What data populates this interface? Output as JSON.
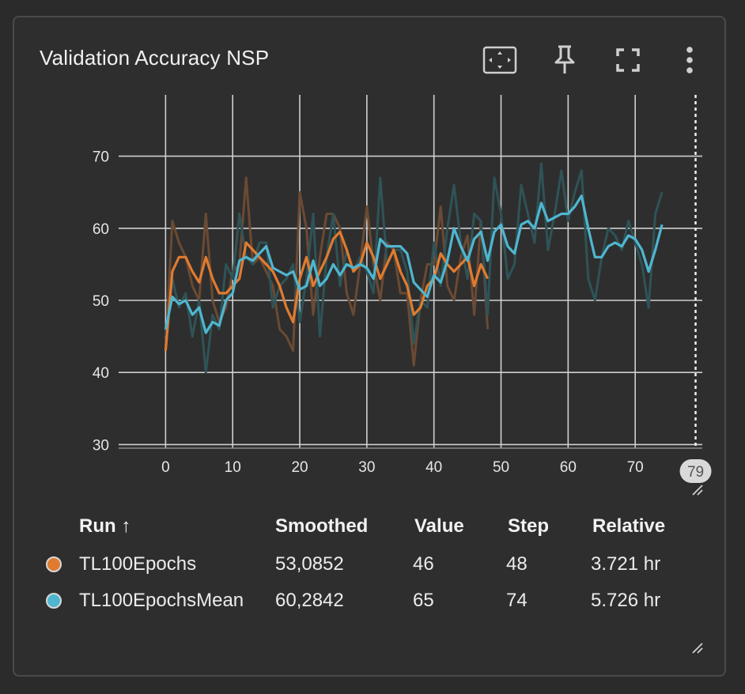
{
  "card": {
    "title": "Validation Accuracy NSP"
  },
  "toolbar": {
    "icons": [
      "fit-domain-icon",
      "pin-icon",
      "fullscreen-icon",
      "more-vert-icon"
    ]
  },
  "colors": {
    "orange": "#e07b2f",
    "cyan": "#4fb6d0",
    "orange_raw": "#6b4a33",
    "cyan_raw": "#2f5357"
  },
  "chart_data": {
    "type": "line",
    "title": "Validation Accuracy NSP",
    "xlabel": "",
    "ylabel": "",
    "xlim": [
      -7,
      80
    ],
    "ylim": [
      29.5,
      78.5
    ],
    "x_ticks": [
      0,
      10,
      20,
      30,
      40,
      50,
      60,
      70
    ],
    "y_ticks": [
      30,
      40,
      50,
      60,
      70
    ],
    "grid": true,
    "cursor_step": 79,
    "series": [
      {
        "name": "TL100Epochs",
        "color": "#e07b2f",
        "raw_color": "#6b4a33",
        "smoothed": [
          43,
          54,
          56,
          56,
          54,
          52.5,
          56,
          53,
          51,
          51,
          52,
          53,
          58,
          57,
          56,
          55,
          54,
          52,
          49,
          47,
          53,
          56,
          52,
          54,
          56,
          58.5,
          59.5,
          57,
          54,
          55,
          58,
          56,
          53,
          55,
          57,
          54,
          52,
          48,
          49,
          52,
          53,
          56.5,
          55,
          54,
          55,
          56,
          52,
          55,
          53
        ],
        "raw": [
          43,
          61,
          58,
          56,
          52,
          50,
          62,
          50,
          47,
          49,
          54,
          55,
          67,
          55,
          56,
          54,
          52,
          46,
          45,
          43,
          65,
          60,
          48,
          56,
          62,
          62,
          60,
          51,
          48,
          55,
          63,
          55,
          50,
          58,
          57,
          51,
          51,
          41,
          50,
          55,
          55,
          63,
          52,
          50,
          56,
          59,
          48,
          61,
          46
        ]
      },
      {
        "name": "TL100EpochsMean",
        "color": "#4fb6d0",
        "raw_color": "#2f5357",
        "smoothed": [
          46,
          50.5,
          49.5,
          50,
          48,
          49,
          45.5,
          47,
          46.5,
          50,
          51,
          55.5,
          56,
          55.5,
          56.5,
          57.5,
          54.5,
          54,
          53.5,
          54,
          51.5,
          52,
          55.5,
          52,
          53,
          55,
          53.5,
          55,
          54.5,
          55,
          54.5,
          53,
          58.5,
          57.5,
          57.5,
          57.5,
          56.5,
          52.5,
          51.5,
          50.5,
          53.5,
          52.5,
          55.5,
          60,
          57.5,
          55.5,
          58.5,
          59.5,
          55.5,
          59.5,
          60.5,
          57.5,
          56.5,
          60.5,
          61,
          60,
          63.5,
          61,
          61.5,
          62,
          62,
          63,
          64.5,
          60,
          56,
          56,
          57.5,
          58,
          57.5,
          59,
          58.5,
          57,
          54,
          57,
          60.5
        ],
        "raw": [
          45,
          53,
          49,
          51,
          45,
          50,
          40,
          48,
          46,
          55,
          53,
          62,
          56,
          55,
          58,
          58,
          49,
          52,
          53,
          55,
          47,
          53,
          62,
          45,
          56,
          62,
          52,
          57,
          54,
          56,
          54,
          51,
          67,
          55,
          57,
          57,
          54,
          44,
          50,
          49,
          58,
          52,
          60,
          66,
          58,
          53,
          62,
          61,
          48,
          67,
          62,
          53,
          55,
          66,
          62,
          58,
          69,
          57,
          62,
          68,
          61,
          65,
          68,
          53,
          50,
          56,
          60,
          59,
          57,
          61,
          58,
          55,
          49,
          62,
          65
        ]
      }
    ]
  },
  "table": {
    "headers": {
      "run": "Run ↑",
      "smoothed": "Smoothed",
      "value": "Value",
      "step": "Step",
      "relative": "Relative"
    },
    "rows": [
      {
        "run": "TL100Epochs",
        "smoothed": "53,0852",
        "value": "46",
        "step": "48",
        "relative": "3.721 hr",
        "color": "#e07b2f"
      },
      {
        "run": "TL100EpochsMean",
        "smoothed": "60,2842",
        "value": "65",
        "step": "74",
        "relative": "5.726 hr",
        "color": "#4fb6d0"
      }
    ]
  }
}
